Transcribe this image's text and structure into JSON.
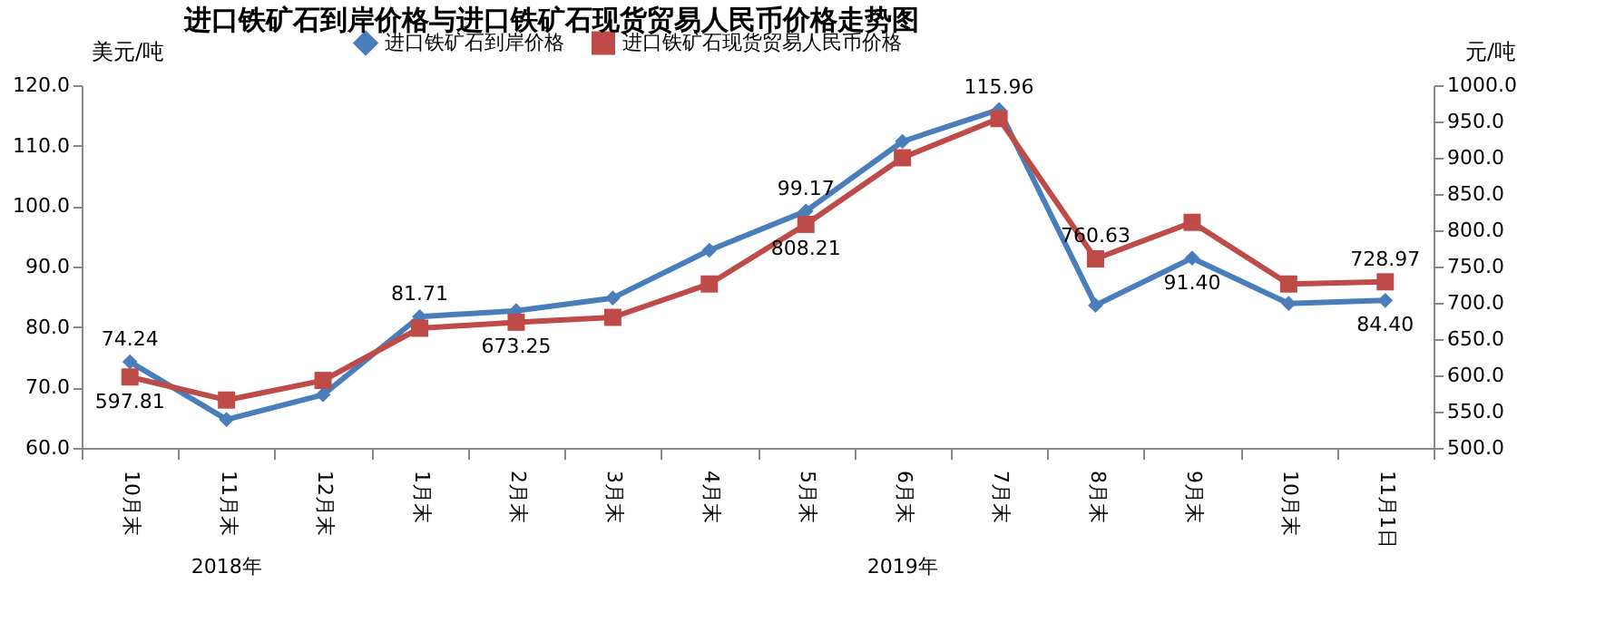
{
  "chart_data": {
    "type": "line",
    "title": "进口铁矿石到岸价格与进口铁矿石现货贸易人民币价格走势图",
    "categories": [
      "10月末",
      "11月末",
      "12月末",
      "1月末",
      "2月末",
      "3月末",
      "4月末",
      "5月末",
      "6月末",
      "7月末",
      "8月末",
      "9月末",
      "10月末",
      "11月1日"
    ],
    "ylabel": "美元/吨",
    "y2label": "元/吨",
    "ylim": [
      60,
      120
    ],
    "yticks": [
      {
        "value": 60,
        "label": "60.0"
      },
      {
        "value": 70,
        "label": "70.0"
      },
      {
        "value": 80,
        "label": "80.0"
      },
      {
        "value": 90,
        "label": "90.0"
      },
      {
        "value": 100,
        "label": "100.0"
      },
      {
        "value": 110,
        "label": "110.0"
      },
      {
        "value": 120,
        "label": "120.0"
      }
    ],
    "y2lim": [
      500,
      1000
    ],
    "y2ticks": [
      {
        "value": 500,
        "label": "500.0"
      },
      {
        "value": 550,
        "label": "550.0"
      },
      {
        "value": 600,
        "label": "600.0"
      },
      {
        "value": 650,
        "label": "650.0"
      },
      {
        "value": 700,
        "label": "700.0"
      },
      {
        "value": 750,
        "label": "750.0"
      },
      {
        "value": 800,
        "label": "800.0"
      },
      {
        "value": 850,
        "label": "850.0"
      },
      {
        "value": 900,
        "label": "900.0"
      },
      {
        "value": 950,
        "label": "950.0"
      },
      {
        "value": 1000,
        "label": "1000.0"
      }
    ],
    "series": [
      {
        "name": "进口铁矿石到岸价格",
        "color": "#4a7ebb",
        "marker": "diamond",
        "values": [
          74.24,
          64.7,
          68.8,
          81.71,
          82.7,
          84.8,
          92.7,
          99.17,
          110.7,
          115.96,
          83.6,
          91.4,
          83.9,
          84.4
        ],
        "value_labels": [
          "74.24",
          null,
          null,
          "81.71",
          null,
          null,
          null,
          "99.17",
          null,
          "115.96",
          null,
          "91.40",
          null,
          "84.40"
        ]
      },
      {
        "name": "进口铁矿石现货贸易人民币价格",
        "color": "#be4b48",
        "marker": "square",
        "axis": "y2",
        "values": [
          597.81,
          566,
          593,
          665,
          673.25,
          680,
          726,
          808.21,
          900,
          954,
          760.63,
          811,
          726,
          728.97
        ],
        "value_labels": [
          "597.81",
          null,
          null,
          null,
          "673.25",
          null,
          null,
          "808.21",
          null,
          null,
          "760.63",
          null,
          null,
          "728.97"
        ]
      }
    ],
    "annotations": [
      "2018年",
      "2019年"
    ],
    "legend": "top",
    "grid": false,
    "line_style": "solid"
  }
}
